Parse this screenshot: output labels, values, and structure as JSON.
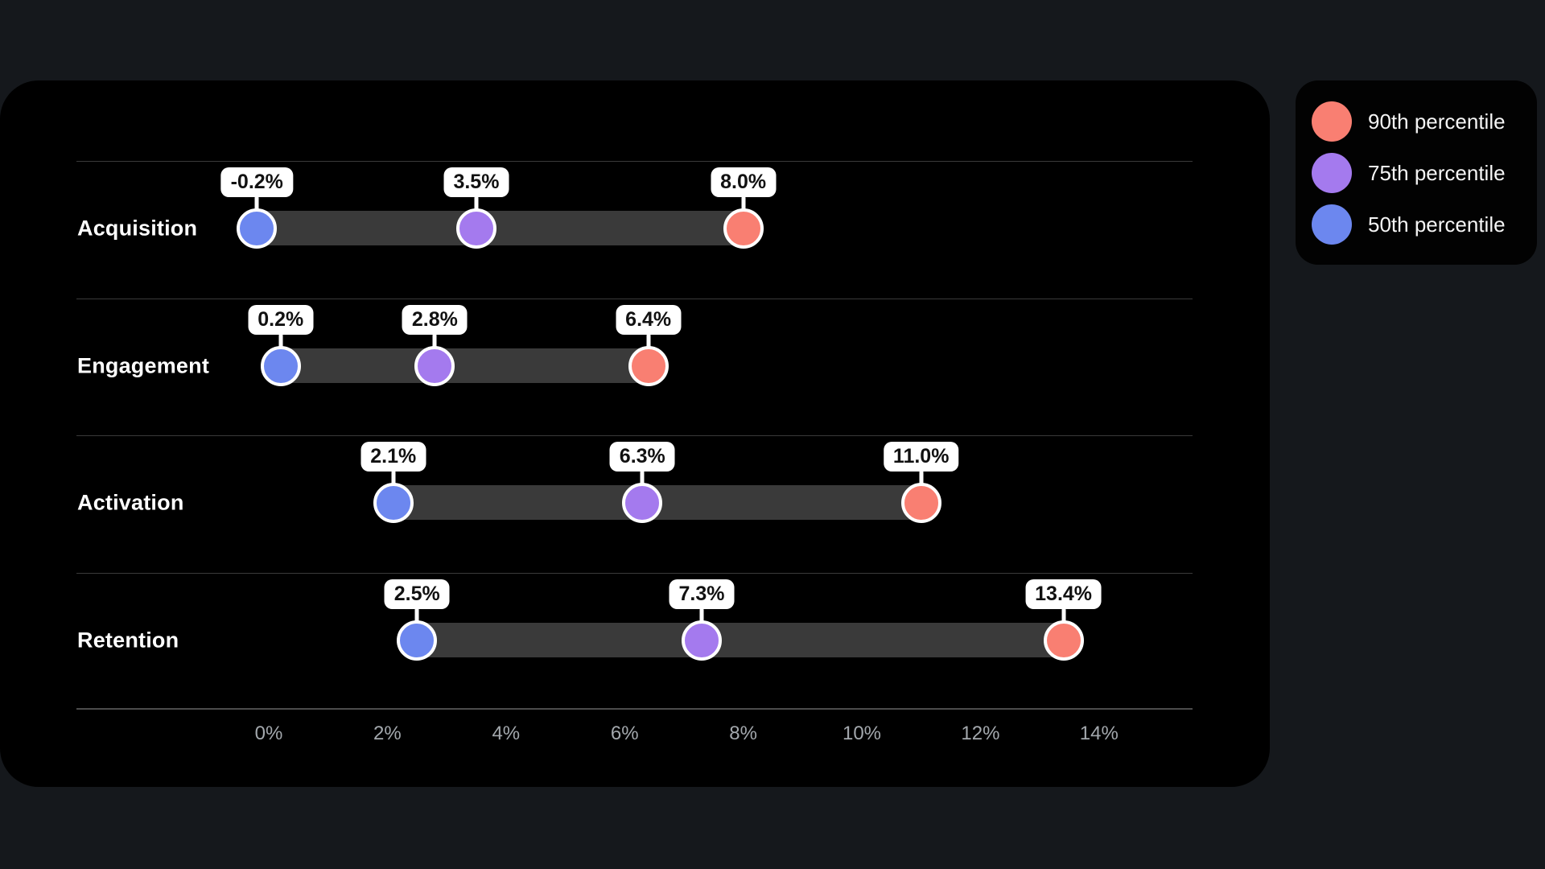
{
  "legend": {
    "items": [
      {
        "label": "90th percentile",
        "color": "#f97f72"
      },
      {
        "label": "75th percentile",
        "color": "#a47aee"
      },
      {
        "label": "50th percentile",
        "color": "#6c87ef"
      }
    ]
  },
  "colors": {
    "page_bg": "#15181c",
    "card_bg": "#000000",
    "track": "#3a3a3a",
    "separator": "#3a3a3a",
    "axis_line": "#4c4c4c",
    "tick_text": "#a3a8ad",
    "label_text": "#ffffff",
    "badge_bg": "#ffffff",
    "badge_text": "#111111"
  },
  "chart_data": {
    "type": "dumbbell",
    "title": "",
    "xlabel": "",
    "ylabel": "",
    "unit": "%",
    "grid": "row-separators",
    "legend_position": "top-right",
    "categories": [
      "Acquisition",
      "Engagement",
      "Activation",
      "Retention"
    ],
    "series": [
      {
        "name": "50th percentile",
        "color": "#6c87ef",
        "values": [
          -0.2,
          0.2,
          2.1,
          2.5
        ]
      },
      {
        "name": "75th percentile",
        "color": "#a47aee",
        "values": [
          3.5,
          2.8,
          6.3,
          7.3
        ]
      },
      {
        "name": "90th percentile",
        "color": "#f97f72",
        "values": [
          8.0,
          6.4,
          11.0,
          13.4
        ]
      }
    ],
    "x_ticks": [
      "0%",
      "2%",
      "4%",
      "6%",
      "8%",
      "10%",
      "12%",
      "14%"
    ],
    "x_tick_values": [
      0,
      2,
      4,
      6,
      8,
      10,
      12,
      14
    ],
    "x_axis": {
      "min": 0,
      "max": 14
    },
    "rows": [
      {
        "label": "Acquisition",
        "points": [
          {
            "percentile": "50th",
            "value": -0.2,
            "display": "-0.2%",
            "color": "#6c87ef"
          },
          {
            "percentile": "75th",
            "value": 3.5,
            "display": "3.5%",
            "color": "#a47aee"
          },
          {
            "percentile": "90th",
            "value": 8.0,
            "display": "8.0%",
            "color": "#f97f72"
          }
        ]
      },
      {
        "label": "Engagement",
        "points": [
          {
            "percentile": "50th",
            "value": 0.2,
            "display": "0.2%",
            "color": "#6c87ef"
          },
          {
            "percentile": "75th",
            "value": 2.8,
            "display": "2.8%",
            "color": "#a47aee"
          },
          {
            "percentile": "90th",
            "value": 6.4,
            "display": "6.4%",
            "color": "#f97f72"
          }
        ]
      },
      {
        "label": "Activation",
        "points": [
          {
            "percentile": "50th",
            "value": 2.1,
            "display": "2.1%",
            "color": "#6c87ef"
          },
          {
            "percentile": "75th",
            "value": 6.3,
            "display": "6.3%",
            "color": "#a47aee"
          },
          {
            "percentile": "90th",
            "value": 11.0,
            "display": "11.0%",
            "color": "#f97f72"
          }
        ]
      },
      {
        "label": "Retention",
        "points": [
          {
            "percentile": "50th",
            "value": 2.5,
            "display": "2.5%",
            "color": "#6c87ef"
          },
          {
            "percentile": "75th",
            "value": 7.3,
            "display": "7.3%",
            "color": "#a47aee"
          },
          {
            "percentile": "90th",
            "value": 13.4,
            "display": "13.4%",
            "color": "#f97f72"
          }
        ]
      }
    ]
  }
}
